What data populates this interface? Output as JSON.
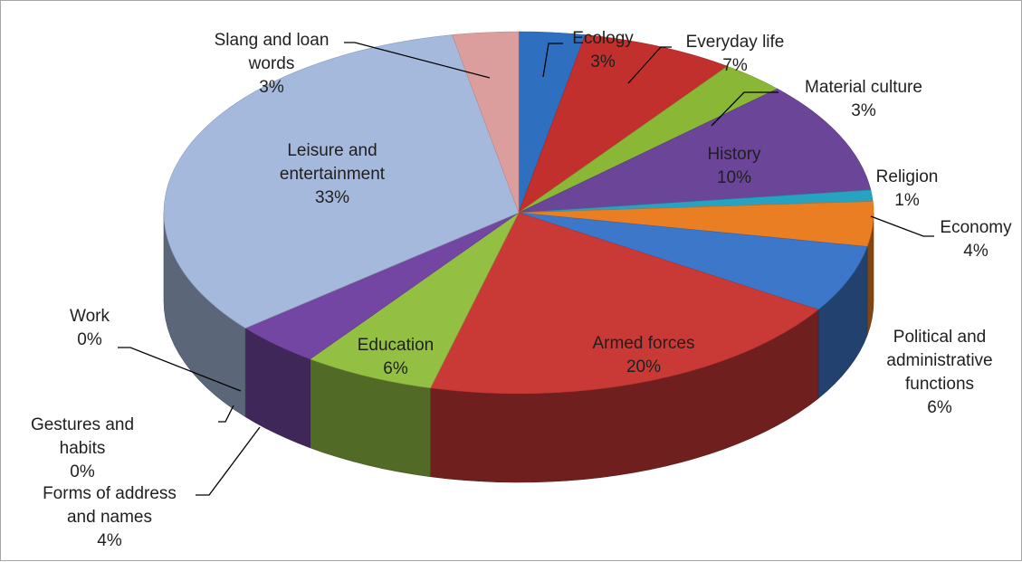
{
  "chart_data": {
    "type": "pie",
    "style": "3d-exploded-perspective",
    "title": "",
    "legend": "none",
    "slices": [
      {
        "name": "Ecology",
        "percent": 3,
        "label": "3%",
        "color": "#2f6fbf",
        "label_lines": [
          "Ecology",
          "3%"
        ]
      },
      {
        "name": "Everyday life",
        "percent": 7,
        "label": "7%",
        "color": "#c1302d",
        "label_lines": [
          "Everyday life",
          "7%"
        ]
      },
      {
        "name": "Material culture",
        "percent": 3,
        "label": "3%",
        "color": "#8bb737",
        "label_lines": [
          "Material culture",
          "3%"
        ]
      },
      {
        "name": "History",
        "percent": 10,
        "label": "10%",
        "color": "#6a4598",
        "label_lines": [
          "History",
          "10%"
        ]
      },
      {
        "name": "Religion",
        "percent": 1,
        "label": "1%",
        "color": "#27a3c1",
        "label_lines": [
          "Religion",
          "1%"
        ]
      },
      {
        "name": "Economy",
        "percent": 4,
        "label": "4%",
        "color": "#e97e22",
        "label_lines": [
          "Economy",
          "4%"
        ]
      },
      {
        "name": "Political and administrative functions",
        "percent": 6,
        "label": "6%",
        "color": "#3d77c9",
        "label_lines": [
          "Political and",
          "administrative",
          "functions",
          "6%"
        ]
      },
      {
        "name": "Armed forces",
        "percent": 20,
        "label": "20%",
        "color": "#c93a37",
        "label_lines": [
          "Armed forces",
          "20%"
        ]
      },
      {
        "name": "Education",
        "percent": 6,
        "label": "6%",
        "color": "#93c043",
        "label_lines": [
          "Education",
          "6%"
        ]
      },
      {
        "name": "Forms of address and names",
        "percent": 4,
        "label": "4%",
        "color": "#7446a4",
        "label_lines": [
          "Forms of address",
          "and names",
          "4%"
        ]
      },
      {
        "name": "Gestures and habits",
        "percent": 0,
        "label": "0%",
        "color": "#2aa9c9",
        "label_lines": [
          "Gestures and",
          "habits",
          "0%"
        ]
      },
      {
        "name": "Work",
        "percent": 0,
        "label": "0%",
        "color": "#f0892c",
        "label_lines": [
          "Work",
          "0%"
        ]
      },
      {
        "name": "Leisure and entertainment",
        "percent": 33,
        "label": "33%",
        "color": "#a5b9dc",
        "label_lines": [
          "Leisure and",
          "entertainment",
          "33%"
        ]
      },
      {
        "name": "Slang and loan words",
        "percent": 3,
        "label": "3%",
        "color": "#dc9e9d",
        "label_lines": [
          "Slang and loan",
          "words",
          "3%"
        ]
      }
    ]
  }
}
